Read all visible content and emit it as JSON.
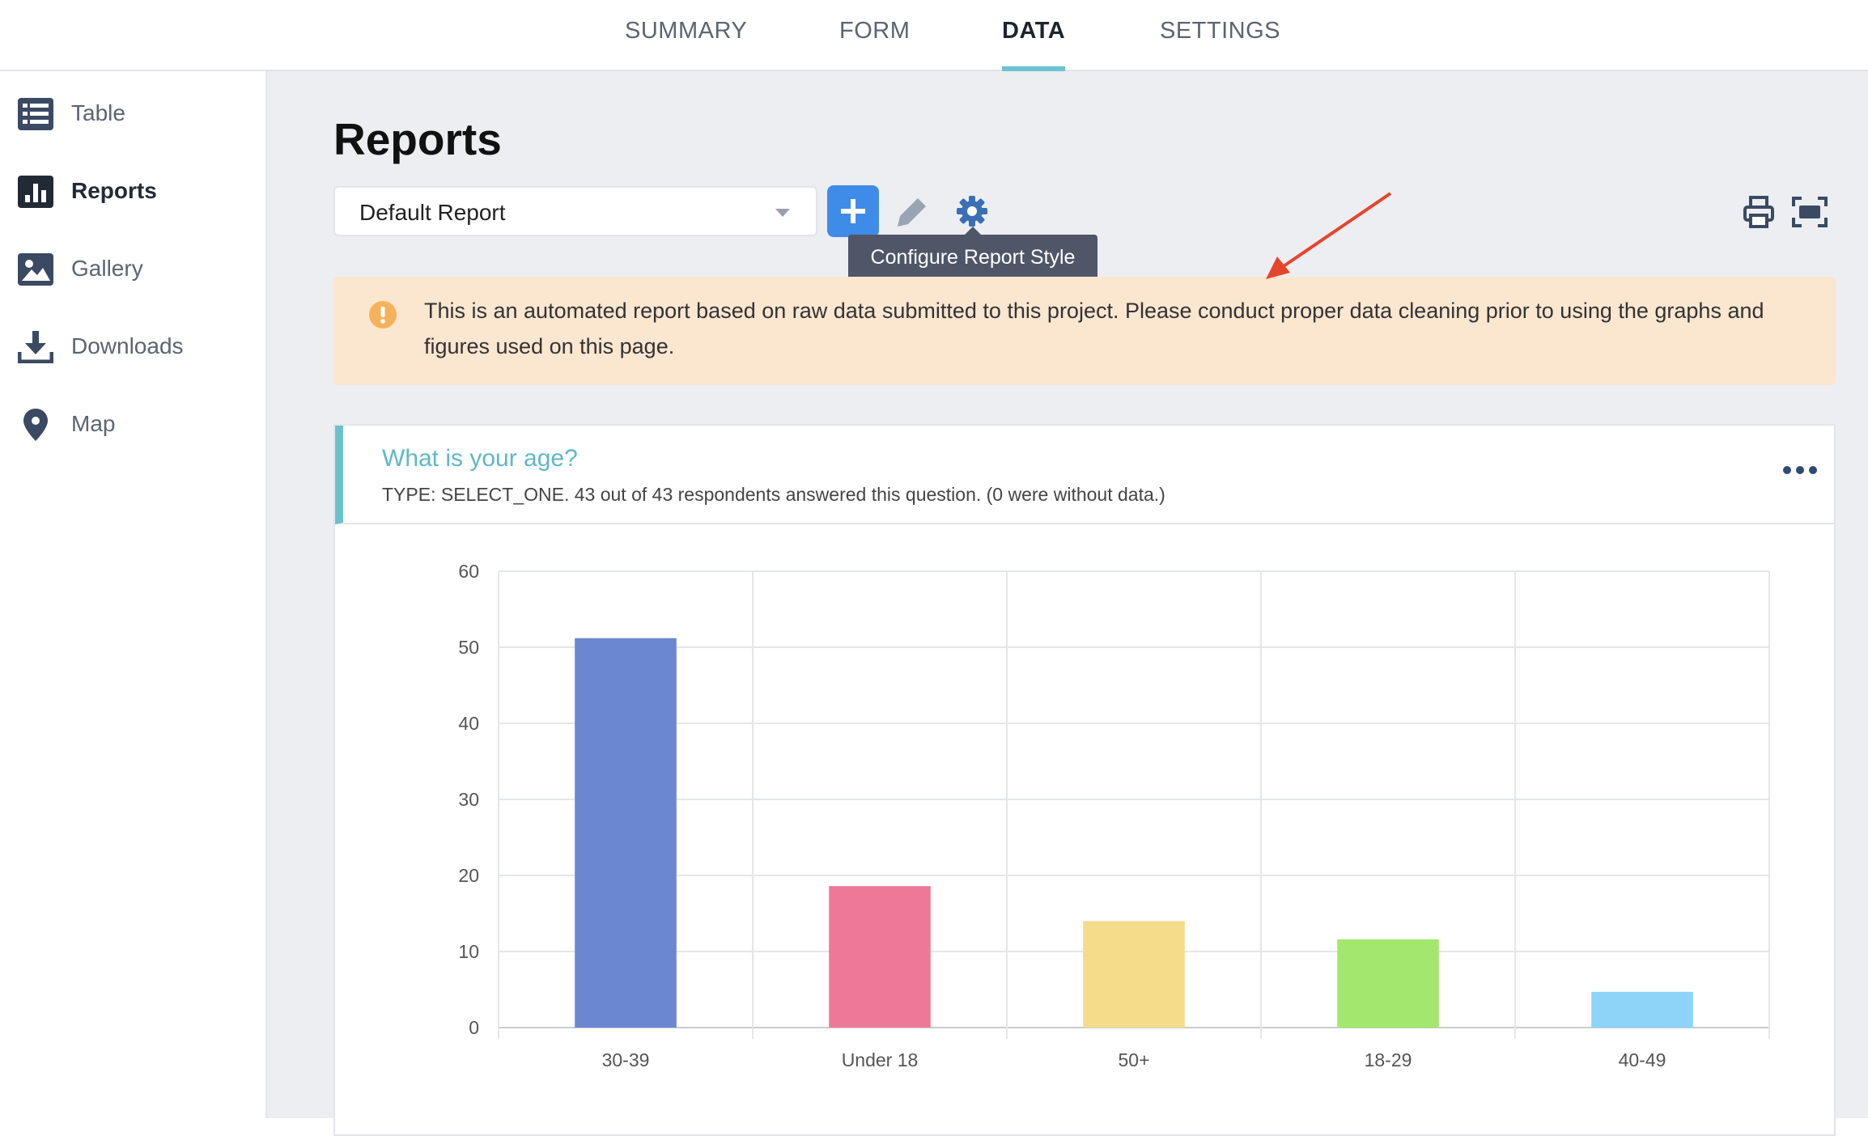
{
  "tabs": [
    {
      "label": "SUMMARY",
      "active": false
    },
    {
      "label": "FORM",
      "active": false
    },
    {
      "label": "DATA",
      "active": true
    },
    {
      "label": "SETTINGS",
      "active": false
    }
  ],
  "sidebar": {
    "items": [
      {
        "label": "Table",
        "icon": "table-icon",
        "active": false
      },
      {
        "label": "Reports",
        "icon": "bar-chart-icon",
        "active": true
      },
      {
        "label": "Gallery",
        "icon": "image-icon",
        "active": false
      },
      {
        "label": "Downloads",
        "icon": "download-icon",
        "active": false
      },
      {
        "label": "Map",
        "icon": "map-pin-icon",
        "active": false
      }
    ]
  },
  "main": {
    "title": "Reports",
    "report_select": {
      "value": "Default Report"
    },
    "tooltip": "Configure Report Style",
    "alert": "This is an automated report based on raw data submitted to this project. Please conduct proper data cleaning prior to using the graphs and figures used on this page.",
    "question": {
      "title": "What is your age?",
      "meta": "TYPE: SELECT_ONE. 43 out of 43 respondents answered this question. (0 were without data.)"
    }
  },
  "colors": {
    "accent_teal": "#6bc2cf",
    "primary_blue": "#3f8ce8",
    "icon_slate": "#3b4a63",
    "annotation_red": "#e5452c"
  },
  "chart_data": {
    "type": "bar",
    "categories": [
      "30-39",
      "Under 18",
      "50+",
      "18-29",
      "40-49"
    ],
    "values": [
      51.2,
      18.6,
      14,
      11.6,
      4.7
    ],
    "colors": [
      "#6b87d1",
      "#ee7996",
      "#f4dc8b",
      "#a3e86c",
      "#8ed3f8"
    ],
    "ylim": [
      0,
      60
    ],
    "yticks": [
      0,
      10,
      20,
      30,
      40,
      50,
      60
    ],
    "grid": true,
    "title": "",
    "xlabel": "",
    "ylabel": ""
  }
}
